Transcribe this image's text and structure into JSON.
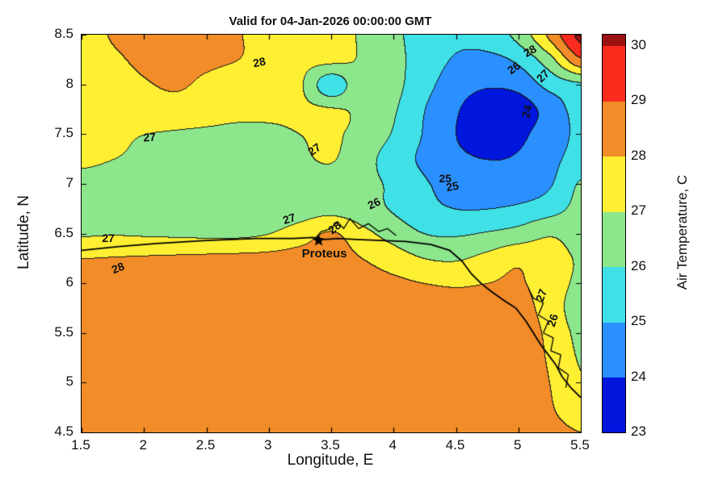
{
  "chart_data": {
    "type": "heatmap",
    "title": "Valid for 04-Jan-2026 00:00:00 GMT",
    "xlabel": "Longitude, E",
    "ylabel": "Latitude, N",
    "xlim": [
      1.5,
      5.5
    ],
    "ylim": [
      4.5,
      8.5
    ],
    "levels_c": [
      23,
      24,
      25,
      26,
      27,
      28,
      29,
      30
    ],
    "x_lon": [
      1.5,
      1.75,
      2.0,
      2.25,
      2.5,
      2.75,
      3.0,
      3.25,
      3.5,
      3.75,
      4.0,
      4.25,
      4.5,
      4.75,
      5.0,
      5.25,
      5.5
    ],
    "y_lat_top_to_bottom": [
      8.5,
      8.25,
      8.0,
      7.75,
      7.5,
      7.25,
      7.0,
      6.75,
      6.5,
      6.25,
      6.0,
      5.75,
      5.5,
      5.25,
      5.0,
      4.75,
      4.5
    ],
    "temperature_c": [
      [
        27.5,
        28.1,
        28.4,
        28.3,
        28.1,
        28.05,
        27.6,
        27.3,
        27.2,
        26.9,
        26.2,
        25.6,
        25.2,
        25.5,
        26.3,
        28.2,
        30.3
      ],
      [
        27.3,
        27.8,
        28.2,
        28.2,
        28.15,
        28.0,
        27.6,
        27.3,
        27.2,
        26.9,
        26.3,
        25.5,
        24.9,
        24.7,
        25.2,
        26.6,
        28.8
      ],
      [
        27.2,
        27.5,
        27.9,
        28.1,
        27.8,
        27.4,
        27.2,
        27.1,
        25.3,
        26.9,
        26.3,
        25.3,
        24.5,
        24.1,
        24.3,
        25.3,
        25.8
      ],
      [
        27.1,
        27.3,
        27.5,
        27.6,
        27.5,
        27.3,
        27.2,
        27.2,
        27.1,
        26.8,
        26.1,
        25.0,
        24.1,
        23.4,
        23.5,
        24.4,
        25.4
      ],
      [
        27.3,
        27.15,
        27.0,
        26.9,
        26.8,
        26.7,
        26.8,
        27.0,
        27.1,
        26.7,
        25.9,
        24.9,
        24.0,
        23.7,
        23.8,
        24.5,
        25.2
      ],
      [
        27.15,
        27.0,
        26.85,
        26.7,
        26.6,
        26.5,
        26.6,
        26.85,
        27.05,
        26.4,
        25.5,
        24.8,
        24.2,
        24.0,
        24.1,
        24.7,
        25.4
      ],
      [
        26.7,
        26.6,
        26.5,
        26.4,
        26.35,
        26.3,
        26.35,
        26.5,
        26.6,
        26.3,
        25.8,
        25.1,
        24.6,
        24.4,
        24.4,
        24.9,
        26.1
      ],
      [
        26.45,
        26.4,
        26.35,
        26.3,
        26.3,
        26.3,
        26.4,
        26.55,
        26.7,
        26.4,
        25.9,
        25.3,
        25.0,
        25.0,
        25.2,
        25.6,
        26.3
      ],
      [
        26.9,
        26.95,
        26.9,
        26.85,
        26.8,
        26.8,
        27.0,
        27.5,
        28.1,
        27.3,
        26.6,
        26.0,
        25.9,
        26.1,
        26.4,
        26.9,
        26.6
      ],
      [
        28.0,
        28.05,
        28.1,
        28.15,
        28.2,
        28.25,
        28.3,
        28.4,
        28.4,
        28.0,
        27.5,
        27.0,
        26.9,
        27.3,
        27.8,
        27.4,
        26.9
      ],
      [
        28.25,
        28.3,
        28.35,
        28.4,
        28.4,
        28.45,
        28.45,
        28.5,
        28.5,
        28.4,
        28.2,
        28.0,
        27.9,
        28.0,
        28.1,
        27.5,
        26.8
      ],
      [
        28.35,
        28.4,
        28.4,
        28.45,
        28.45,
        28.5,
        28.5,
        28.5,
        28.5,
        28.5,
        28.4,
        28.3,
        28.3,
        28.3,
        28.3,
        27.6,
        26.4
      ],
      [
        28.4,
        28.4,
        28.45,
        28.45,
        28.5,
        28.5,
        28.5,
        28.5,
        28.5,
        28.5,
        28.5,
        28.4,
        28.4,
        28.4,
        28.4,
        27.8,
        26.7
      ],
      [
        28.4,
        28.45,
        28.45,
        28.5,
        28.5,
        28.5,
        28.5,
        28.5,
        28.5,
        28.5,
        28.5,
        28.5,
        28.5,
        28.5,
        28.4,
        27.9,
        26.9
      ],
      [
        28.45,
        28.45,
        28.5,
        28.5,
        28.5,
        28.5,
        28.5,
        28.5,
        28.5,
        28.5,
        28.5,
        28.5,
        28.5,
        28.5,
        28.5,
        28.0,
        27.1
      ],
      [
        28.45,
        28.5,
        28.5,
        28.5,
        28.5,
        28.5,
        28.5,
        28.5,
        28.5,
        28.5,
        28.5,
        28.5,
        28.5,
        28.5,
        28.5,
        28.1,
        27.3
      ],
      [
        28.5,
        28.5,
        28.5,
        28.5,
        28.5,
        28.5,
        28.5,
        28.5,
        28.5,
        28.5,
        28.5,
        28.5,
        28.5,
        28.5,
        28.5,
        28.3,
        28.0
      ]
    ],
    "contour_labels": [
      {
        "text": "28",
        "lon": 2.93,
        "lat": 8.22,
        "rot": -12
      },
      {
        "text": "28",
        "lon": 5.1,
        "lat": 8.33,
        "rot": -30
      },
      {
        "text": "26",
        "lon": 4.97,
        "lat": 8.16,
        "rot": -35
      },
      {
        "text": "27",
        "lon": 5.2,
        "lat": 8.08,
        "rot": -45
      },
      {
        "text": "24",
        "lon": 5.07,
        "lat": 7.72,
        "rot": -75
      },
      {
        "text": "27",
        "lon": 2.05,
        "lat": 7.46,
        "rot": -4
      },
      {
        "text": "27",
        "lon": 3.37,
        "lat": 7.34,
        "rot": -35
      },
      {
        "text": "27",
        "lon": 3.17,
        "lat": 6.64,
        "rot": -18
      },
      {
        "text": "28",
        "lon": 3.53,
        "lat": 6.55,
        "rot": -40
      },
      {
        "text": "26",
        "lon": 3.85,
        "lat": 6.8,
        "rot": -25
      },
      {
        "text": "25",
        "lon": 4.48,
        "lat": 6.97,
        "rot": -10
      },
      {
        "text": "25",
        "lon": 4.42,
        "lat": 7.05,
        "rot": 0
      },
      {
        "text": "27",
        "lon": 1.72,
        "lat": 6.45,
        "rot": 0
      },
      {
        "text": "28",
        "lon": 1.8,
        "lat": 6.15,
        "rot": -22
      },
      {
        "text": "27",
        "lon": 5.19,
        "lat": 5.87,
        "rot": -70
      },
      {
        "text": "26",
        "lon": 5.28,
        "lat": 5.62,
        "rot": -72
      }
    ],
    "station_marker": {
      "name": "Proteus",
      "lon": 3.4,
      "lat": 6.43
    },
    "coastline_lonlat": [
      [
        1.5,
        6.33
      ],
      [
        1.8,
        6.37
      ],
      [
        2.1,
        6.4
      ],
      [
        2.5,
        6.43
      ],
      [
        2.9,
        6.45
      ],
      [
        3.2,
        6.45
      ],
      [
        3.35,
        6.46
      ],
      [
        3.45,
        6.44
      ],
      [
        3.55,
        6.45
      ],
      [
        3.7,
        6.44
      ],
      [
        3.9,
        6.43
      ],
      [
        4.1,
        6.42
      ],
      [
        4.3,
        6.39
      ],
      [
        4.45,
        6.33
      ],
      [
        4.55,
        6.22
      ],
      [
        4.62,
        6.1
      ],
      [
        4.7,
        6.0
      ],
      [
        4.78,
        5.92
      ],
      [
        4.88,
        5.83
      ],
      [
        4.98,
        5.75
      ],
      [
        5.06,
        5.62
      ],
      [
        5.12,
        5.5
      ],
      [
        5.18,
        5.38
      ],
      [
        5.24,
        5.28
      ],
      [
        5.3,
        5.18
      ],
      [
        5.35,
        5.06
      ],
      [
        5.42,
        4.95
      ],
      [
        5.5,
        4.85
      ]
    ],
    "rivers_lonlat": [
      [
        [
          3.38,
          6.46
        ],
        [
          3.42,
          6.52
        ],
        [
          3.5,
          6.55
        ],
        [
          3.55,
          6.62
        ],
        [
          3.6,
          6.55
        ],
        [
          3.65,
          6.65
        ],
        [
          3.72,
          6.55
        ],
        [
          3.8,
          6.6
        ],
        [
          3.88,
          6.52
        ],
        [
          3.95,
          6.55
        ],
        [
          4.02,
          6.48
        ]
      ],
      [
        [
          5.08,
          5.95
        ],
        [
          5.12,
          5.85
        ],
        [
          5.2,
          5.8
        ],
        [
          5.16,
          5.68
        ],
        [
          5.24,
          5.62
        ],
        [
          5.2,
          5.5
        ],
        [
          5.28,
          5.45
        ],
        [
          5.26,
          5.32
        ],
        [
          5.34,
          5.28
        ],
        [
          5.32,
          5.15
        ],
        [
          5.4,
          5.08
        ],
        [
          5.38,
          4.95
        ]
      ]
    ]
  },
  "axis": {
    "xtick_values": [
      1.5,
      2,
      2.5,
      3,
      3.5,
      4,
      4.5,
      5,
      5.5
    ],
    "xtick_labels": [
      "1.5",
      "2",
      "2.5",
      "3",
      "3.5",
      "4",
      "4.5",
      "5",
      "5.5"
    ],
    "ytick_values": [
      4.5,
      5,
      5.5,
      6,
      6.5,
      7,
      7.5,
      8,
      8.5
    ],
    "ytick_labels": [
      "4.5",
      "5",
      "5.5",
      "6",
      "6.5",
      "7",
      "7.5",
      "8",
      "8.5"
    ]
  },
  "colorbar": {
    "label": "Air Temperature, C",
    "tick_values": [
      23,
      24,
      25,
      26,
      27,
      28,
      29,
      30
    ],
    "tick_labels": [
      "23",
      "24",
      "25",
      "26",
      "27",
      "28",
      "29",
      "30"
    ],
    "band_colors": [
      "#0016dc",
      "#2a8fff",
      "#3fe0e6",
      "#8ce68c",
      "#ffef33",
      "#f28c28",
      "#fb2c1d",
      "#9c1111"
    ]
  }
}
